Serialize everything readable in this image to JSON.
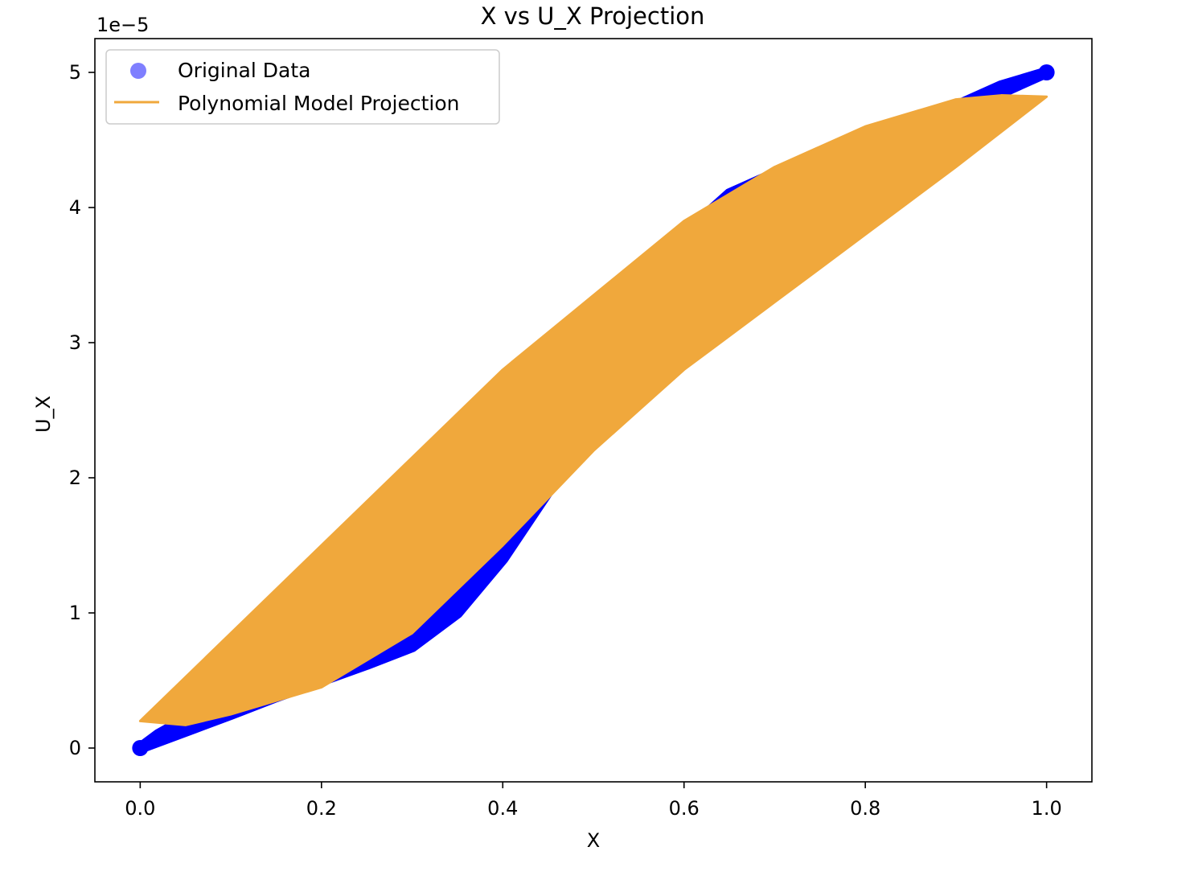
{
  "chart_data": {
    "type": "scatter",
    "title": "X vs U_X Projection",
    "xlabel": "X",
    "ylabel": "U_X",
    "y_offset_label": "1e−5",
    "xlim": [
      -0.05,
      1.05
    ],
    "ylim": [
      -0.25,
      5.25
    ],
    "xticks": [
      0.0,
      0.2,
      0.4,
      0.6,
      0.8,
      1.0
    ],
    "xtick_labels": [
      "0.0",
      "0.2",
      "0.4",
      "0.6",
      "0.8",
      "1.0"
    ],
    "yticks": [
      0,
      1,
      2,
      3,
      4,
      5
    ],
    "ytick_labels": [
      "0",
      "1",
      "2",
      "3",
      "4",
      "5"
    ],
    "grid": false,
    "legend_position": "top-left",
    "series": [
      {
        "name": "Original Data",
        "kind": "scatter",
        "color": "#0000ff",
        "legend_marker_color": "#7f7fff",
        "upper": [
          [
            0.0,
            0.0
          ],
          [
            0.02,
            0.1
          ],
          [
            0.06,
            0.25
          ],
          [
            0.1,
            0.38
          ],
          [
            0.15,
            0.52
          ],
          [
            0.2,
            0.62
          ],
          [
            0.25,
            0.75
          ],
          [
            0.3,
            0.85
          ],
          [
            0.35,
            1.15
          ],
          [
            0.4,
            1.5
          ],
          [
            0.45,
            1.95
          ],
          [
            0.5,
            2.5
          ],
          [
            0.55,
            3.2
          ],
          [
            0.6,
            3.8
          ],
          [
            0.65,
            4.1
          ],
          [
            0.7,
            4.25
          ],
          [
            0.75,
            4.35
          ],
          [
            0.8,
            4.45
          ],
          [
            0.85,
            4.6
          ],
          [
            0.9,
            4.75
          ],
          [
            0.95,
            4.9
          ],
          [
            1.0,
            5.0
          ]
        ],
        "lower": [
          [
            0.0,
            0.0
          ],
          [
            0.02,
            0.05
          ],
          [
            0.06,
            0.15
          ],
          [
            0.1,
            0.25
          ],
          [
            0.15,
            0.38
          ],
          [
            0.2,
            0.5
          ],
          [
            0.25,
            0.62
          ],
          [
            0.3,
            0.75
          ],
          [
            0.35,
            1.0
          ],
          [
            0.4,
            1.4
          ],
          [
            0.45,
            1.9
          ],
          [
            0.5,
            2.45
          ],
          [
            0.55,
            3.0
          ],
          [
            0.6,
            3.6
          ],
          [
            0.65,
            3.95
          ],
          [
            0.7,
            4.1
          ],
          [
            0.75,
            4.25
          ],
          [
            0.8,
            4.4
          ],
          [
            0.85,
            4.55
          ],
          [
            0.9,
            4.7
          ],
          [
            0.95,
            4.85
          ],
          [
            1.0,
            5.0
          ]
        ]
      },
      {
        "name": "Polynomial Model Projection",
        "kind": "line",
        "color": "#f0a83c",
        "upper": [
          [
            0.0,
            0.2
          ],
          [
            0.1,
            0.85
          ],
          [
            0.2,
            1.5
          ],
          [
            0.3,
            2.15
          ],
          [
            0.4,
            2.8
          ],
          [
            0.5,
            3.35
          ],
          [
            0.6,
            3.9
          ],
          [
            0.7,
            4.3
          ],
          [
            0.8,
            4.6
          ],
          [
            0.9,
            4.8
          ],
          [
            0.95,
            4.83
          ],
          [
            1.0,
            4.82
          ]
        ],
        "lower": [
          [
            0.0,
            0.2
          ],
          [
            0.05,
            0.17
          ],
          [
            0.1,
            0.25
          ],
          [
            0.2,
            0.45
          ],
          [
            0.3,
            0.85
          ],
          [
            0.4,
            1.5
          ],
          [
            0.5,
            2.2
          ],
          [
            0.6,
            2.8
          ],
          [
            0.7,
            3.3
          ],
          [
            0.8,
            3.8
          ],
          [
            0.9,
            4.3
          ],
          [
            1.0,
            4.82
          ]
        ]
      }
    ]
  }
}
